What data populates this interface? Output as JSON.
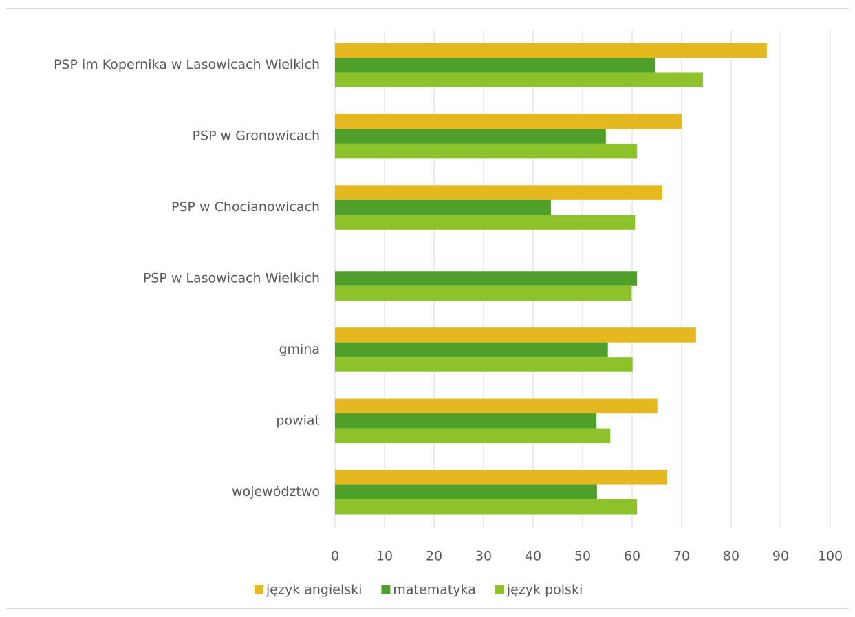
{
  "chart_data": {
    "type": "bar",
    "orientation": "horizontal",
    "categories": [
      "PSP im Kopernika w Lasowicach Wielkich",
      "PSP w Gronowicach",
      "PSP w Chocianowicach",
      "PSP w Lasowicach Wielkich",
      "gmina",
      "powiat",
      "województwo"
    ],
    "series": [
      {
        "name": "język angielski",
        "color": "#e6b81f",
        "values": [
          87.2,
          70,
          66.1,
          null,
          72.9,
          65.1,
          67.1
        ]
      },
      {
        "name": "matematyka",
        "color": "#4ea02a",
        "values": [
          64.6,
          54.7,
          43.6,
          61,
          55.1,
          52.8,
          52.9
        ]
      },
      {
        "name": "język polski",
        "color": "#8dc22a",
        "values": [
          74.3,
          61,
          60.6,
          59.9,
          60.1,
          55.6,
          61
        ]
      }
    ],
    "xlim": [
      0,
      100
    ],
    "xticks": [
      0,
      10,
      20,
      30,
      40,
      50,
      60,
      70,
      80,
      90,
      100
    ],
    "grid": true,
    "legend": "bottom"
  }
}
